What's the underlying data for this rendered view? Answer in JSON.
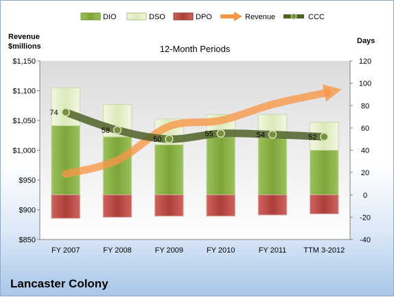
{
  "company": "Lancaster Colony",
  "chart_data": {
    "type": "bar",
    "title": "12-Month Periods",
    "left_axis_title": [
      "Revenue",
      "$millions"
    ],
    "right_axis_title": "Days",
    "categories": [
      "FY 2007",
      "FY 2008",
      "FY 2009",
      "FY 2010",
      "FY 2011",
      "TTM 3-2012"
    ],
    "left_axis": {
      "min": 850,
      "max": 1150,
      "step": 50,
      "tick_labels": [
        "$850",
        "$900",
        "$950",
        "$1,000",
        "$1,050",
        "$1,100",
        "$1,150"
      ]
    },
    "right_axis": {
      "min": -40,
      "max": 120,
      "step": 20,
      "tick_labels": [
        "-40",
        "-20",
        "0",
        "20",
        "40",
        "60",
        "80",
        "100",
        "120"
      ]
    },
    "grid": false,
    "legend_position": "top",
    "series": [
      {
        "name": "DIO",
        "kind": "stacked-bar",
        "axis": "right",
        "values": [
          62,
          52,
          45,
          52,
          51,
          40
        ],
        "color": "#8db048"
      },
      {
        "name": "DSO",
        "kind": "stacked-bar",
        "axis": "right",
        "values": [
          34,
          29,
          23,
          20,
          21,
          25
        ],
        "color": "#e6f0c8"
      },
      {
        "name": "DPO",
        "kind": "negative-bar",
        "axis": "right",
        "values": [
          -21,
          -20,
          -19,
          -19,
          -18,
          -17
        ],
        "color": "#c0504d"
      },
      {
        "name": "Revenue",
        "kind": "arrow",
        "axis": "left",
        "values": [
          960,
          983,
          1040,
          1050,
          1077,
          1096
        ],
        "color": "#f79646"
      },
      {
        "name": "CCC",
        "kind": "line",
        "axis": "right",
        "values": [
          74,
          58,
          50,
          55,
          54,
          52
        ],
        "labels": [
          "74",
          "58",
          "50",
          "55",
          "54",
          "52"
        ],
        "color": "#4f6228"
      }
    ]
  }
}
